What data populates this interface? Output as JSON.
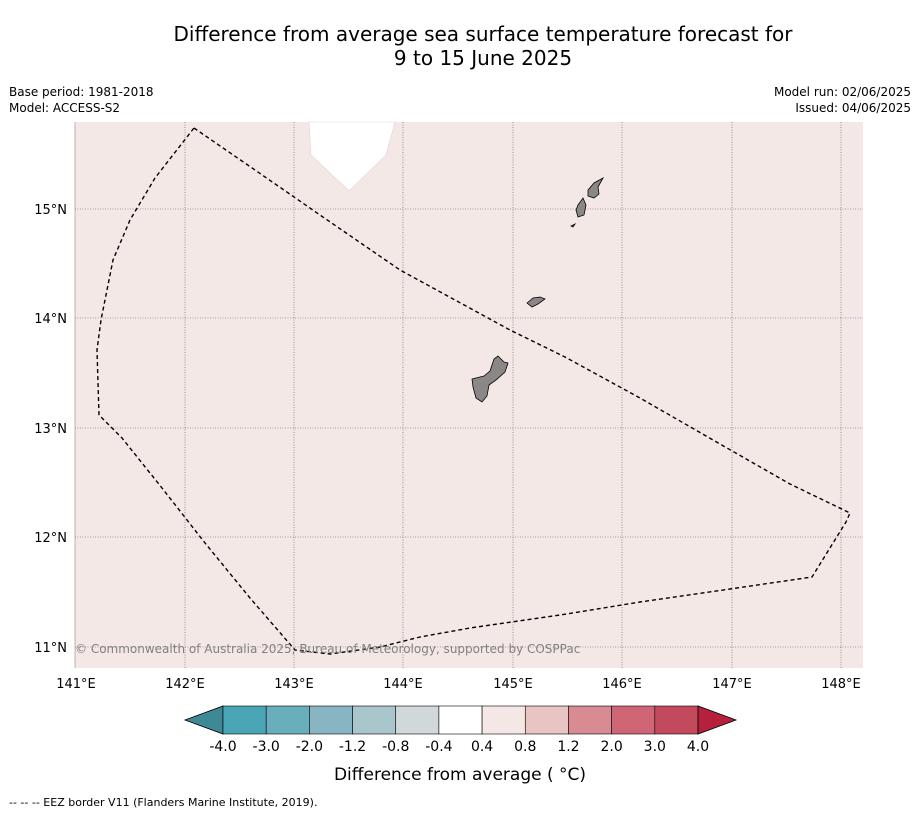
{
  "title": {
    "line1": "Difference from average sea surface temperature forecast for",
    "line2": "9 to 15 June 2025"
  },
  "meta": {
    "base_period": "Base period: 1981-2018",
    "model": "Model: ACCESS-S2",
    "model_run": "Model run: 02/06/2025",
    "issued": "Issued: 04/06/2025"
  },
  "map": {
    "lat_labels": [
      "15°N",
      "14°N",
      "13°N",
      "12°N",
      "11°N"
    ],
    "lon_labels": [
      "141°E",
      "142°E",
      "143°E",
      "144°E",
      "145°E",
      "146°E",
      "147°E",
      "148°E"
    ],
    "ocean_color": "#f4e8e7",
    "land_color": "#8c8787",
    "copyright": "© Commonwealth of Australia 2025, Bureau of Meteorology, supported by COSPPac"
  },
  "colorbar": {
    "label": "Difference from average ( °C)",
    "ticks": [
      "-4.0",
      "-3.0",
      "-2.0",
      "-1.2",
      "-0.8",
      "-0.4",
      "0.4",
      "0.8",
      "1.2",
      "2.0",
      "3.0",
      "4.0"
    ],
    "colors": [
      "#3f8996",
      "#4aa6b6",
      "#6aaebd",
      "#88b5c1",
      "#a8c6cb",
      "#d0d8da",
      "#ffffff",
      "#f4e8e7",
      "#e8c4c2",
      "#d98b94",
      "#cf6675",
      "#c34a5c",
      "#b5213d"
    ]
  },
  "footer": "--  --  -- EEZ border V11 (Flanders Marine Institute, 2019)."
}
